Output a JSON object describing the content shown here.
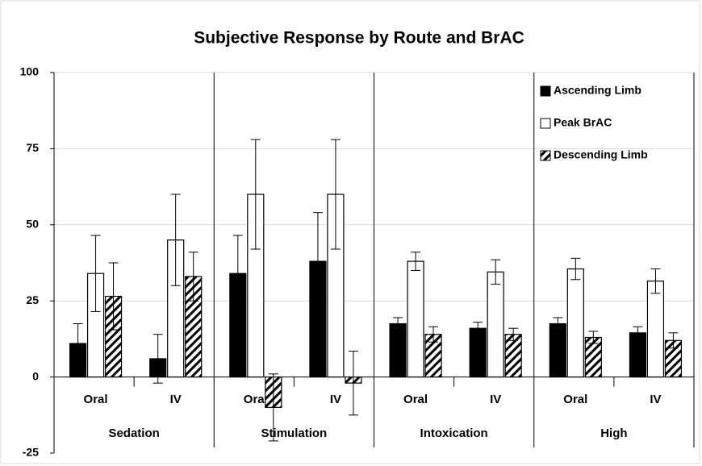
{
  "chart_data": {
    "type": "bar",
    "title": "Subjective Response by Route and BrAC",
    "categories": [
      "Oral",
      "IV",
      "Oral",
      "IV",
      "Oral",
      "IV",
      "Oral",
      "IV"
    ],
    "groups": [
      "Sedation",
      "Stimulation",
      "Intoxication",
      "High"
    ],
    "series": [
      {
        "name": "Ascending Limb",
        "color": "#000000",
        "pattern": "solid",
        "values": [
          11,
          6,
          34,
          38,
          17.5,
          16,
          17.5,
          14.5
        ],
        "errors": [
          6.5,
          8,
          12.5,
          16,
          2,
          2,
          2,
          2
        ]
      },
      {
        "name": "Peak BrAC",
        "color": "#ffffff",
        "pattern": "solid",
        "values": [
          34,
          45,
          60,
          60,
          38,
          34.5,
          35.5,
          31.5
        ],
        "errors": [
          12.5,
          15,
          18,
          18,
          3,
          4,
          3.5,
          4
        ]
      },
      {
        "name": "Descending Limb",
        "color": "#000000",
        "pattern": "hatch",
        "values": [
          26.5,
          33,
          -10,
          -2,
          14,
          14,
          13,
          12
        ],
        "errors": [
          11,
          8,
          11,
          10.5,
          2.5,
          2,
          2,
          2.5
        ]
      }
    ],
    "ylim": [
      -25,
      100
    ],
    "yticks": [
      -25,
      0,
      25,
      50,
      75,
      100
    ],
    "grid": true,
    "legend": "top-right"
  }
}
